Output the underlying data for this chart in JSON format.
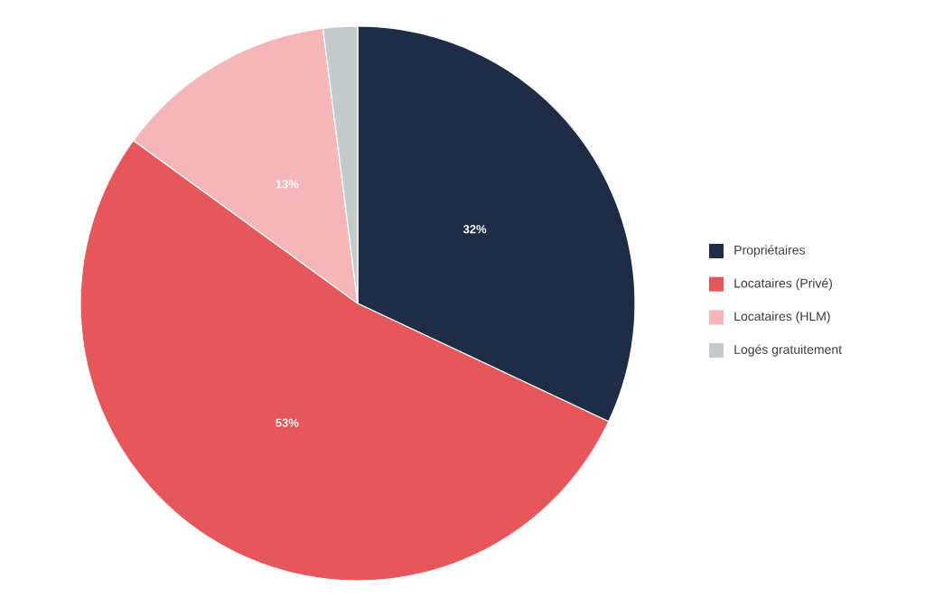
{
  "chart_data": {
    "type": "pie",
    "categories": [
      "Propriétaires",
      "Locataires (Privé)",
      "Locataires (HLM)",
      "Logés gratuitement"
    ],
    "values": [
      32,
      53,
      13,
      2
    ],
    "colors": [
      "#1e2d45",
      "#e5575a",
      "#f4b6b8",
      "#c4c9cc"
    ],
    "value_labels": [
      "32%",
      "53%",
      "13%",
      null
    ],
    "legend": "right"
  }
}
